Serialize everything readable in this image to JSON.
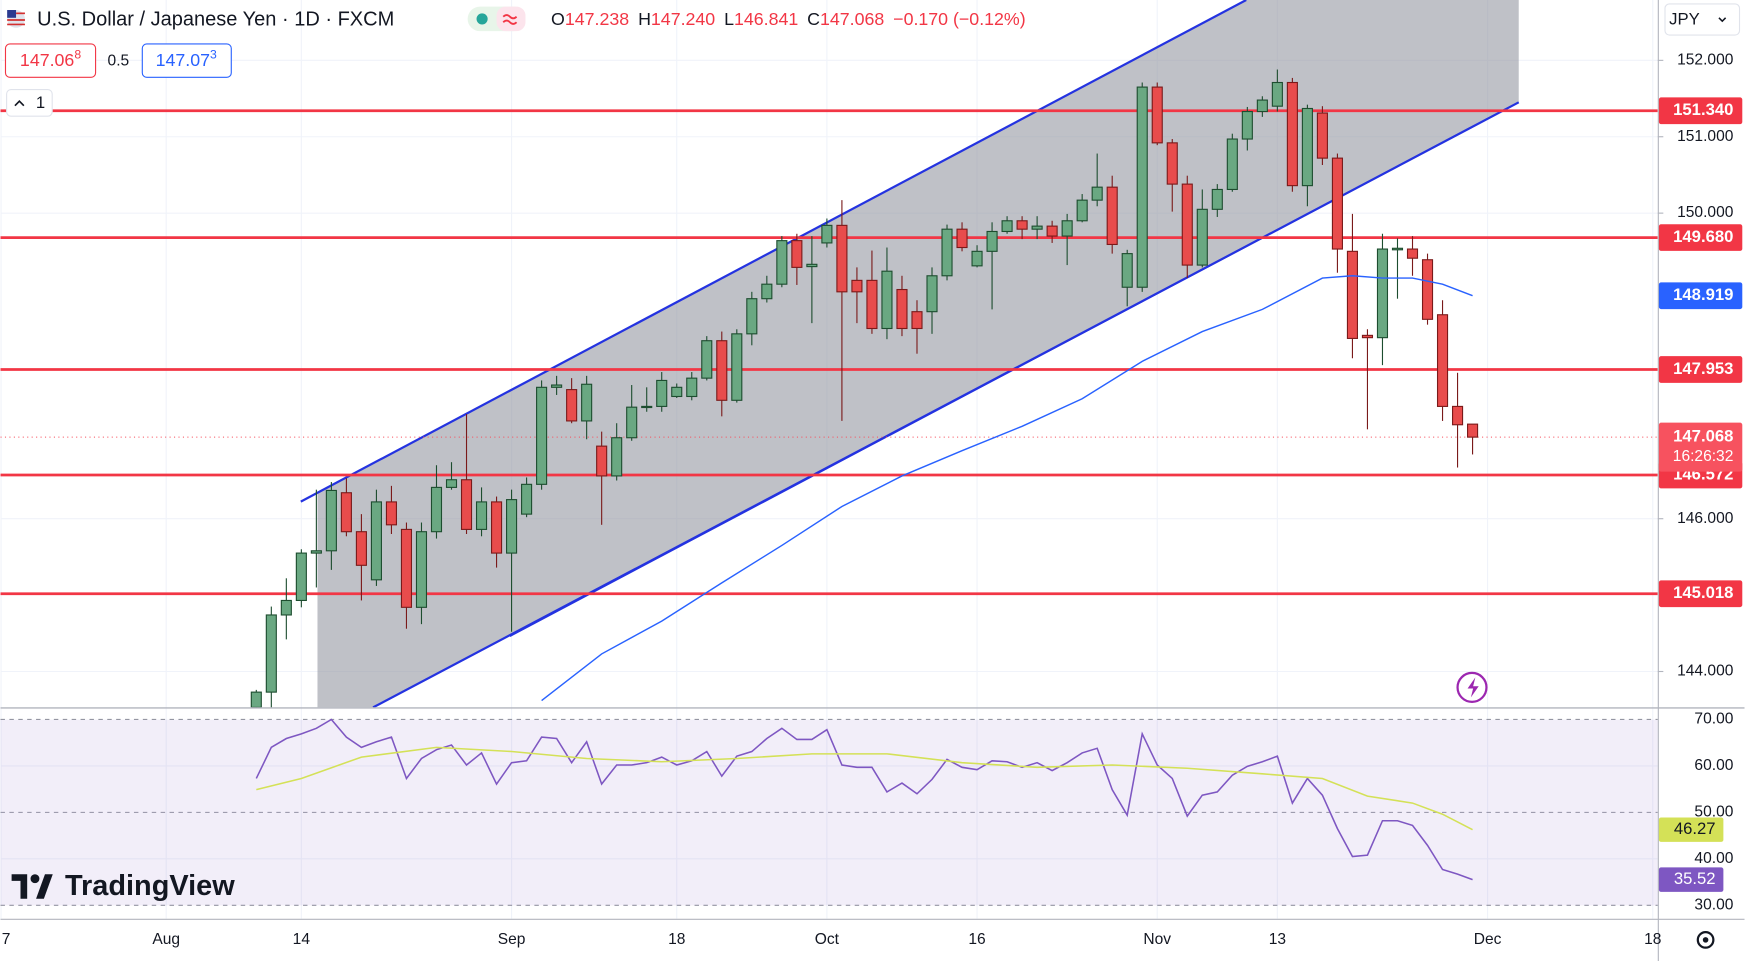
{
  "header": {
    "ohlc": [
      {
        "k": "O",
        "v": "147.238"
      },
      {
        "k": "H",
        "v": "147.240"
      },
      {
        "k": "L",
        "v": "146.841"
      },
      {
        "k": "C",
        "v": "147.068"
      }
    ],
    "change": "−0.170 (−0.12%)",
    "sell": {
      "main": "147.06",
      "sup": "8"
    },
    "spread": "0.5",
    "buy": {
      "main": "147.07",
      "sup": "3"
    },
    "interval": "1",
    "currency": "JPY",
    "logo": "TradingView"
  },
  "chart_data": [
    {
      "type": "candlestick",
      "title": "U.S. Dollar / Japanese Yen · 1D · FXCM",
      "grid": true,
      "up_color": "#6aa882",
      "down_color": "#e84c4c",
      "categories": [
        "Aug 9",
        "Aug 10",
        "Aug 11",
        "Aug 14",
        "Aug 15",
        "Aug 16",
        "Aug 17",
        "Aug 18",
        "Aug 21",
        "Aug 22",
        "Aug 23",
        "Aug 24",
        "Aug 25",
        "Aug 28",
        "Aug 29",
        "Aug 30",
        "Aug 31",
        "Sep 1",
        "Sep 4",
        "Sep 5",
        "Sep 6",
        "Sep 7",
        "Sep 8",
        "Sep 11",
        "Sep 12",
        "Sep 13",
        "Sep 14",
        "Sep 15",
        "Sep 18",
        "Sep 19",
        "Sep 20",
        "Sep 21",
        "Sep 22",
        "Sep 25",
        "Sep 26",
        "Sep 27",
        "Sep 28",
        "Sep 29",
        "Oct 2",
        "Oct 3",
        "Oct 4",
        "Oct 5",
        "Oct 6",
        "Oct 9",
        "Oct 10",
        "Oct 11",
        "Oct 12",
        "Oct 13",
        "Oct 16",
        "Oct 17",
        "Oct 18",
        "Oct 19",
        "Oct 20",
        "Oct 23",
        "Oct 24",
        "Oct 25",
        "Oct 26",
        "Oct 27",
        "Oct 30",
        "Oct 31",
        "Nov 1",
        "Nov 2",
        "Nov 3",
        "Nov 6",
        "Nov 7",
        "Nov 8",
        "Nov 9",
        "Nov 10",
        "Nov 13",
        "Nov 14",
        "Nov 15",
        "Nov 16",
        "Nov 17",
        "Nov 20",
        "Nov 21",
        "Nov 22",
        "Nov 23",
        "Nov 24",
        "Nov 27",
        "Nov 28",
        "Nov 29",
        "Nov 30"
      ],
      "open": [
        143.53,
        143.73,
        144.74,
        144.93,
        145.55,
        145.58,
        146.34,
        145.83,
        145.2,
        146.22,
        145.86,
        144.84,
        145.83,
        146.41,
        146.51,
        145.86,
        146.22,
        145.55,
        146.06,
        146.45,
        147.72,
        147.69,
        147.28,
        146.95,
        146.56,
        147.06,
        147.46,
        147.47,
        147.6,
        147.6,
        147.84,
        148.33,
        147.55,
        148.42,
        148.88,
        149.07,
        149.64,
        149.3,
        149.61,
        149.84,
        149.12,
        149.12,
        148.49,
        149.0,
        148.71,
        148.71,
        149.18,
        149.79,
        149.31,
        149.5,
        149.76,
        149.9,
        149.79,
        149.83,
        149.7,
        149.9,
        150.17,
        150.34,
        149.03,
        149.03,
        151.65,
        150.92,
        150.38,
        149.32,
        150.05,
        150.31,
        150.97,
        151.33,
        151.4,
        151.71,
        150.36,
        151.31,
        150.72,
        149.5,
        148.4,
        148.37,
        149.52,
        149.53,
        149.39,
        148.67,
        147.47,
        147.238
      ],
      "high": [
        143.76,
        144.85,
        145.22,
        145.6,
        146.38,
        146.48,
        146.53,
        146.06,
        146.38,
        146.43,
        145.95,
        145.95,
        146.7,
        146.74,
        147.37,
        146.41,
        146.29,
        146.38,
        146.54,
        147.81,
        147.87,
        147.84,
        147.87,
        147.14,
        147.25,
        147.75,
        147.72,
        147.92,
        147.77,
        147.92,
        148.39,
        148.45,
        148.48,
        148.97,
        149.18,
        149.7,
        149.73,
        149.7,
        149.93,
        150.17,
        149.29,
        149.51,
        149.55,
        149.18,
        148.86,
        149.29,
        149.85,
        149.88,
        149.58,
        149.88,
        149.96,
        149.96,
        149.96,
        149.9,
        149.99,
        150.25,
        150.78,
        150.49,
        149.52,
        151.71,
        151.71,
        150.97,
        150.49,
        150.31,
        150.38,
        151.04,
        151.39,
        151.53,
        151.88,
        151.77,
        151.42,
        151.4,
        150.78,
        149.99,
        148.48,
        149.73,
        149.67,
        149.7,
        149.47,
        148.86,
        147.91,
        147.24
      ],
      "low": [
        143.45,
        143.5,
        144.42,
        144.84,
        145.1,
        145.33,
        145.77,
        144.93,
        145.12,
        145.8,
        144.56,
        144.62,
        145.74,
        146.38,
        145.8,
        145.77,
        145.36,
        144.52,
        146.02,
        146.38,
        147.62,
        147.25,
        147.04,
        145.92,
        146.5,
        147.02,
        147.4,
        147.4,
        147.58,
        147.55,
        147.81,
        147.34,
        147.52,
        148.27,
        148.83,
        149.03,
        149.06,
        148.56,
        149.55,
        147.28,
        148.56,
        148.42,
        148.35,
        148.39,
        148.16,
        148.42,
        149.12,
        149.5,
        149.29,
        148.74,
        149.73,
        149.66,
        149.66,
        149.61,
        149.32,
        149.88,
        150.09,
        149.47,
        148.78,
        148.97,
        150.89,
        150.02,
        149.15,
        149.29,
        149.95,
        150.28,
        150.82,
        151.26,
        151.33,
        150.28,
        150.09,
        150.63,
        149.22,
        148.1,
        147.17,
        148.01,
        148.88,
        149.18,
        148.54,
        147.28,
        146.67,
        146.841
      ],
      "close": [
        143.73,
        144.74,
        144.93,
        145.55,
        145.58,
        146.37,
        145.83,
        145.39,
        146.22,
        145.92,
        144.84,
        145.83,
        146.41,
        146.51,
        145.86,
        146.22,
        145.55,
        146.25,
        146.45,
        147.72,
        147.75,
        147.28,
        147.76,
        146.56,
        147.06,
        147.46,
        147.47,
        147.81,
        147.72,
        147.84,
        148.33,
        147.55,
        148.42,
        148.88,
        149.07,
        149.64,
        149.29,
        149.33,
        149.84,
        148.97,
        148.97,
        148.49,
        149.24,
        148.49,
        148.49,
        149.18,
        149.79,
        149.55,
        149.5,
        149.76,
        149.9,
        149.79,
        149.83,
        149.7,
        149.9,
        150.17,
        150.34,
        149.59,
        149.47,
        151.65,
        150.92,
        150.38,
        149.32,
        150.05,
        150.31,
        150.97,
        151.33,
        151.48,
        151.71,
        150.36,
        151.37,
        150.72,
        149.53,
        148.36,
        148.37,
        149.53,
        149.54,
        149.41,
        148.61,
        147.47,
        147.23,
        147.068
      ],
      "ma": {
        "color": "#2962ff",
        "x": [
          "Sep 5",
          "Sep 11",
          "Sep 15",
          "Sep 21",
          "Sep 27",
          "Oct 3",
          "Oct 9",
          "Oct 13",
          "Oct 19",
          "Oct 25",
          "Oct 31",
          "Nov 6",
          "Nov 10",
          "Nov 16",
          "Nov 20",
          "Nov 22",
          "Nov 24",
          "Nov 28",
          "Nov 30"
        ],
        "values": [
          143.62,
          144.23,
          144.66,
          145.16,
          145.65,
          146.16,
          146.56,
          146.89,
          147.21,
          147.57,
          148.06,
          148.45,
          148.74,
          149.15,
          149.18,
          149.15,
          149.15,
          149.07,
          148.919
        ]
      },
      "hlines": {
        "color": "#f23645",
        "values": [
          151.34,
          149.68,
          147.953,
          146.572,
          145.018
        ],
        "value_labels": [
          "151.340",
          "149.680",
          "147.953",
          "146.572",
          "145.018"
        ]
      },
      "last": {
        "value": 147.068,
        "countdown": "16:26:32",
        "color": "#f7525f"
      },
      "ylim": [
        143.53,
        152.79
      ],
      "yticks": [
        {
          "value": 144,
          "label": "144.000"
        },
        {
          "value": 146,
          "label": "146.000"
        },
        {
          "value": 150,
          "label": "150.000"
        },
        {
          "value": 151,
          "label": "151.000"
        },
        {
          "value": 152,
          "label": "152.000"
        }
      ],
      "xticks": [
        {
          "value": "Jul 17",
          "label": "7"
        },
        {
          "value": "Aug 1",
          "label": "Aug"
        },
        {
          "value": "Aug 14",
          "label": "14"
        },
        {
          "value": "Sep 1",
          "label": "Sep"
        },
        {
          "value": "Sep 18",
          "label": "18"
        },
        {
          "value": "Oct 2",
          "label": "Oct"
        },
        {
          "value": "Oct 16",
          "label": "16"
        },
        {
          "value": "Nov 1",
          "label": "Nov"
        },
        {
          "value": "Nov 13",
          "label": "13"
        },
        {
          "value": "Dec 1",
          "label": "Dec"
        },
        {
          "value": "Dec 18",
          "label": "18"
        }
      ]
    },
    {
      "type": "line",
      "ylim": [
        27.1,
        72.6
      ],
      "yticks": [
        {
          "value": 70,
          "label": "70.00"
        },
        {
          "value": 60,
          "label": "60.00"
        },
        {
          "value": 50,
          "label": "50.00"
        },
        {
          "value": 40,
          "label": "40.00"
        },
        {
          "value": 30,
          "label": "30.00"
        }
      ],
      "series": [
        {
          "color": "#7e57c2",
          "label_text": "#ffffff",
          "values": [
            57.3,
            64.0,
            65.9,
            66.9,
            68.1,
            70.0,
            66.2,
            64.0,
            65.2,
            66.2,
            57.3,
            61.6,
            63.5,
            64.5,
            60.2,
            62.8,
            56.1,
            60.7,
            61.1,
            66.2,
            65.9,
            60.7,
            65.2,
            56.1,
            60.2,
            60.2,
            60.7,
            61.9,
            60.2,
            61.1,
            63.1,
            57.8,
            62.1,
            63.1,
            65.9,
            68.1,
            65.7,
            65.7,
            67.8,
            60.2,
            59.7,
            59.7,
            54.4,
            56.3,
            54.0,
            57.1,
            61.4,
            59.7,
            59.2,
            61.1,
            60.9,
            59.7,
            60.7,
            59.0,
            60.7,
            62.8,
            63.8,
            54.9,
            49.4,
            66.9,
            60.2,
            57.3,
            49.2,
            53.7,
            54.4,
            58.0,
            59.9,
            60.9,
            62.1,
            52.0,
            57.3,
            53.7,
            46.5,
            40.5,
            40.8,
            48.2,
            48.2,
            47.2,
            42.9,
            37.7,
            36.7,
            35.52
          ]
        },
        {
          "color": "#d4e157",
          "label_text": "#131722",
          "x": [
            "Aug 9",
            "Aug 14",
            "Aug 18",
            "Aug 25",
            "Sep 1",
            "Sep 8",
            "Sep 15",
            "Sep 22",
            "Sep 29",
            "Oct 6",
            "Oct 13",
            "Oct 20",
            "Oct 27",
            "Nov 3",
            "Nov 10",
            "Nov 16",
            "Nov 21",
            "Nov 24",
            "Nov 28",
            "Nov 30"
          ],
          "values": [
            54.9,
            57.3,
            61.9,
            64.0,
            63.1,
            61.6,
            60.9,
            61.6,
            62.6,
            62.6,
            60.7,
            59.7,
            60.2,
            59.5,
            58.3,
            57.3,
            53.5,
            52.0,
            49.6,
            46.27
          ]
        }
      ]
    }
  ]
}
